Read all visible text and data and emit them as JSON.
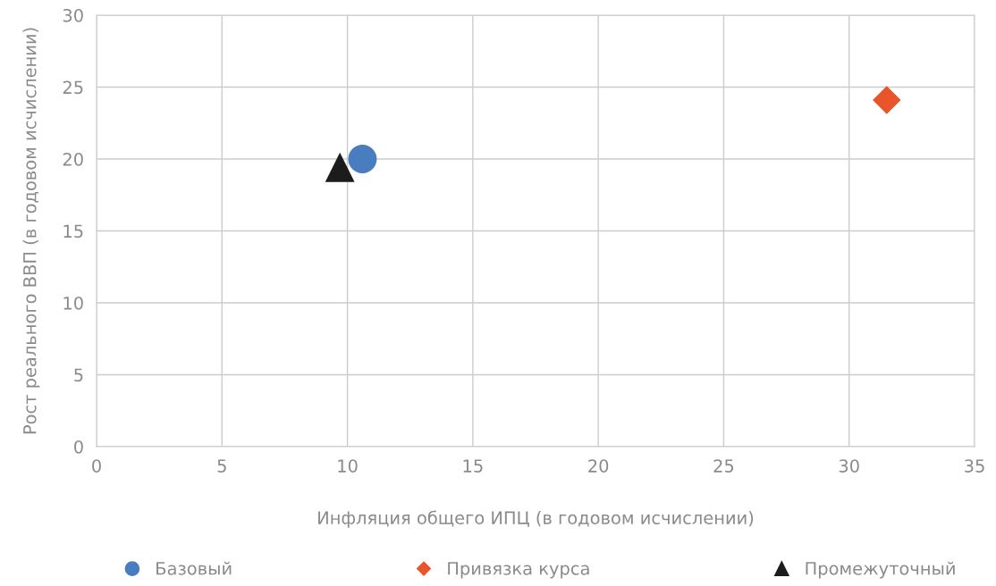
{
  "chart_data": {
    "type": "scatter",
    "xlabel": "Инфляция общего ИПЦ (в годовом исчислении)",
    "ylabel": "Рост реального ВВП (в годовом исчислении)",
    "series": [
      {
        "name": "Базовый",
        "color": "#4a7cc0",
        "marker": "circle",
        "x": [
          10.6
        ],
        "values": [
          20.0
        ]
      },
      {
        "name": "Привязка курса",
        "color": "#e8552a",
        "marker": "diamond",
        "x": [
          31.5
        ],
        "values": [
          24.1
        ]
      },
      {
        "name": "Промежуточный",
        "color": "#1c1c1c",
        "marker": "triangle",
        "x": [
          9.7
        ],
        "values": [
          19.4
        ]
      }
    ],
    "xlim": [
      0,
      35
    ],
    "xticks": [
      0,
      5,
      10,
      15,
      20,
      25,
      30,
      35
    ],
    "ylim": [
      0,
      30
    ],
    "yticks": [
      0,
      5,
      10,
      15,
      20,
      25,
      30
    ],
    "grid": true,
    "legend": "bottom"
  }
}
